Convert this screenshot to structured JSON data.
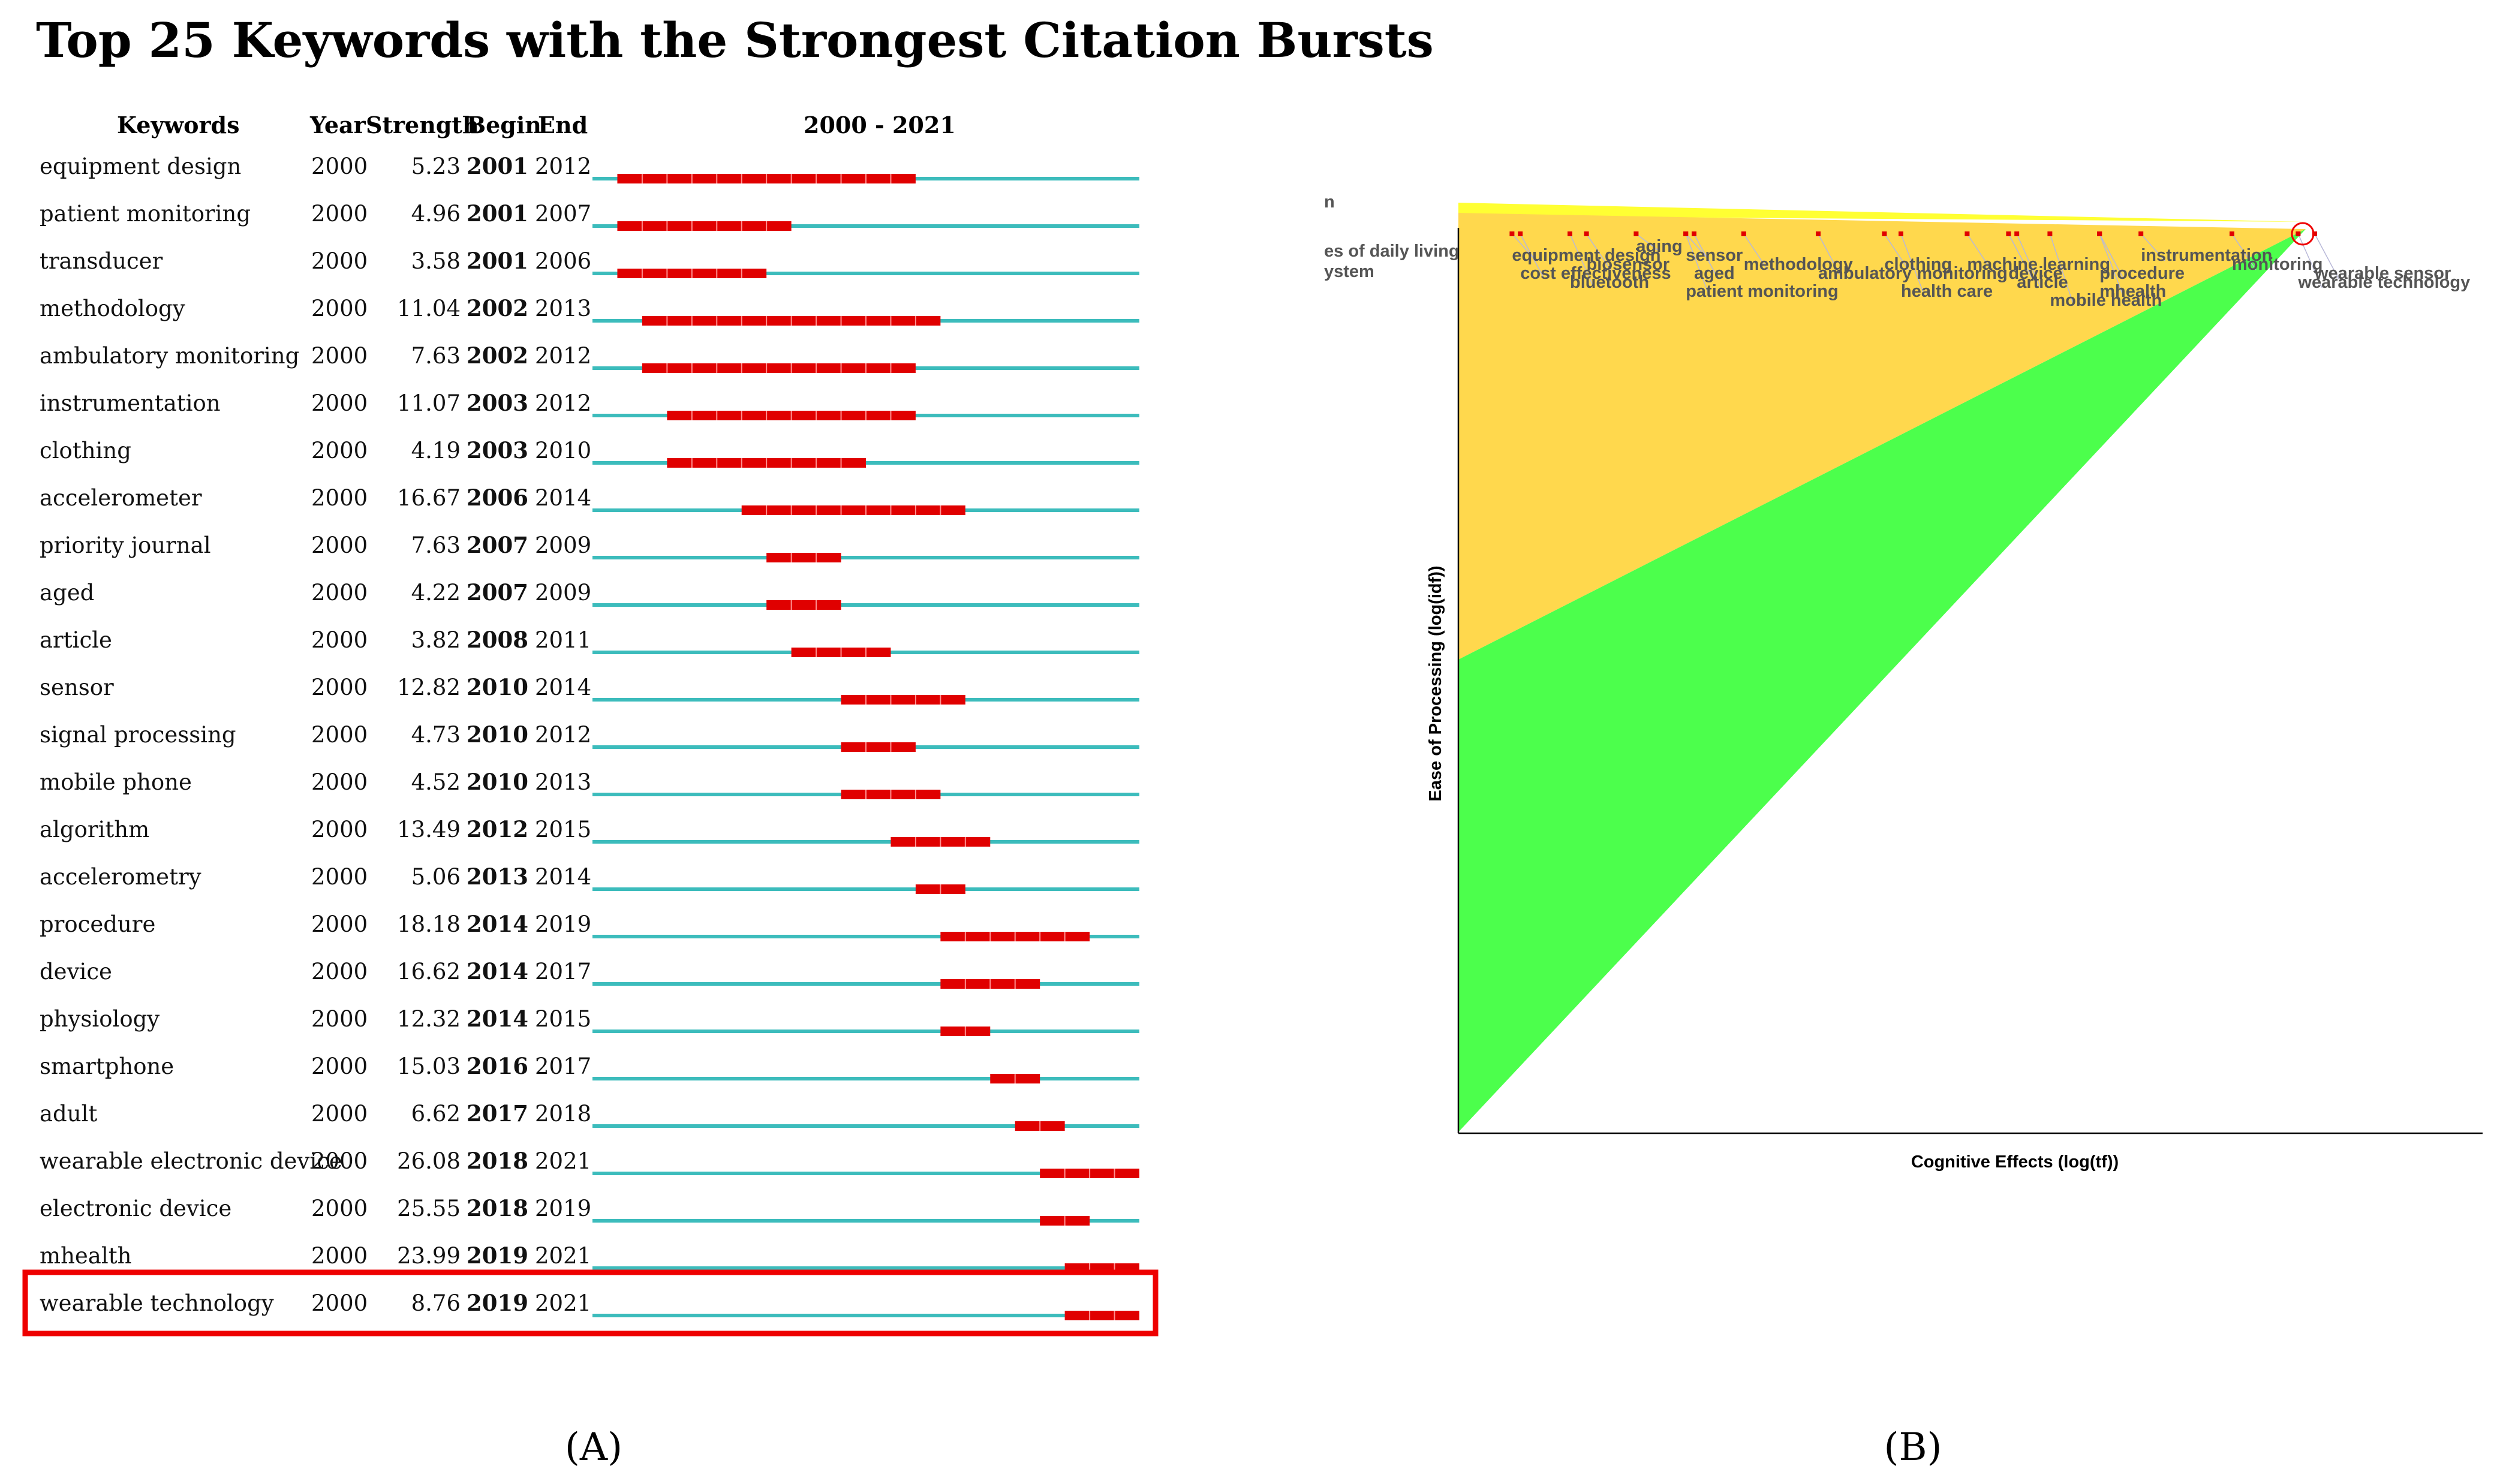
{
  "panel_a": {
    "caption": "(A)",
    "highlight_keyword": "wearable technology"
  },
  "panel_b": {
    "caption": "(B)",
    "edge_labels": [
      "n",
      "es of daily living",
      "ystem"
    ]
  },
  "colors": {
    "burst": "#e00000",
    "baseline": "#3cbcbc",
    "highlight": "#ee0000",
    "upper_triangle": "#ffd84d",
    "top_band": "#ffff33",
    "lower_triangle": "#4cff4c",
    "label": "#555555",
    "link": "#b8b8d8"
  },
  "chart_data": [
    {
      "type": "timeline",
      "title": "Top 25 Keywords with the Strongest Citation Bursts",
      "columns": [
        "Keywords",
        "Year",
        "Strength",
        "Begin",
        "End",
        "2000 - 2021"
      ],
      "range": [
        2000,
        2021
      ],
      "rows": [
        {
          "keyword": "equipment design",
          "year": 2000,
          "strength": "5.23",
          "begin": 2001,
          "end": 2012
        },
        {
          "keyword": "patient monitoring",
          "year": 2000,
          "strength": "4.96",
          "begin": 2001,
          "end": 2007
        },
        {
          "keyword": "transducer",
          "year": 2000,
          "strength": "3.58",
          "begin": 2001,
          "end": 2006
        },
        {
          "keyword": "methodology",
          "year": 2000,
          "strength": "11.04",
          "begin": 2002,
          "end": 2013
        },
        {
          "keyword": "ambulatory monitoring",
          "year": 2000,
          "strength": "7.63",
          "begin": 2002,
          "end": 2012
        },
        {
          "keyword": "instrumentation",
          "year": 2000,
          "strength": "11.07",
          "begin": 2003,
          "end": 2012
        },
        {
          "keyword": "clothing",
          "year": 2000,
          "strength": "4.19",
          "begin": 2003,
          "end": 2010
        },
        {
          "keyword": "accelerometer",
          "year": 2000,
          "strength": "16.67",
          "begin": 2006,
          "end": 2014
        },
        {
          "keyword": "priority journal",
          "year": 2000,
          "strength": "7.63",
          "begin": 2007,
          "end": 2009
        },
        {
          "keyword": "aged",
          "year": 2000,
          "strength": "4.22",
          "begin": 2007,
          "end": 2009
        },
        {
          "keyword": "article",
          "year": 2000,
          "strength": "3.82",
          "begin": 2008,
          "end": 2011
        },
        {
          "keyword": "sensor",
          "year": 2000,
          "strength": "12.82",
          "begin": 2010,
          "end": 2014
        },
        {
          "keyword": "signal processing",
          "year": 2000,
          "strength": "4.73",
          "begin": 2010,
          "end": 2012
        },
        {
          "keyword": "mobile phone",
          "year": 2000,
          "strength": "4.52",
          "begin": 2010,
          "end": 2013
        },
        {
          "keyword": "algorithm",
          "year": 2000,
          "strength": "13.49",
          "begin": 2012,
          "end": 2015
        },
        {
          "keyword": "accelerometry",
          "year": 2000,
          "strength": "5.06",
          "begin": 2013,
          "end": 2014
        },
        {
          "keyword": "procedure",
          "year": 2000,
          "strength": "18.18",
          "begin": 2014,
          "end": 2019
        },
        {
          "keyword": "device",
          "year": 2000,
          "strength": "16.62",
          "begin": 2014,
          "end": 2017
        },
        {
          "keyword": "physiology",
          "year": 2000,
          "strength": "12.32",
          "begin": 2014,
          "end": 2015
        },
        {
          "keyword": "smartphone",
          "year": 2000,
          "strength": "15.03",
          "begin": 2016,
          "end": 2017
        },
        {
          "keyword": "adult",
          "year": 2000,
          "strength": "6.62",
          "begin": 2017,
          "end": 2018
        },
        {
          "keyword": "wearable electronic device",
          "year": 2000,
          "strength": "26.08",
          "begin": 2018,
          "end": 2021
        },
        {
          "keyword": "electronic device",
          "year": 2000,
          "strength": "25.55",
          "begin": 2018,
          "end": 2019
        },
        {
          "keyword": "mhealth",
          "year": 2000,
          "strength": "23.99",
          "begin": 2019,
          "end": 2021
        },
        {
          "keyword": "wearable technology",
          "year": 2000,
          "strength": "8.76",
          "begin": 2019,
          "end": 2021
        }
      ]
    },
    {
      "type": "scatter",
      "title": "",
      "xlabel": "Cognitive Effects (log(tf))",
      "ylabel": "Ease of Processing (log(idf))",
      "xlim": [
        0,
        1
      ],
      "ylim": [
        0,
        1
      ],
      "regions": [
        {
          "name": "upper",
          "color": "#ffd84d"
        },
        {
          "name": "lower",
          "color": "#4cff4c"
        }
      ],
      "points": [
        {
          "label": "equipment design",
          "x": 0.03,
          "y": 0.97
        },
        {
          "label": "cost effectiveness",
          "x": 0.04,
          "y": 0.95
        },
        {
          "label": "bluetooth",
          "x": 0.1,
          "y": 0.94
        },
        {
          "label": "biosensor",
          "x": 0.12,
          "y": 0.96
        },
        {
          "label": "aging",
          "x": 0.18,
          "y": 0.98
        },
        {
          "label": "sensor",
          "x": 0.24,
          "y": 0.97
        },
        {
          "label": "aged",
          "x": 0.25,
          "y": 0.95
        },
        {
          "label": "patient monitoring",
          "x": 0.24,
          "y": 0.93
        },
        {
          "label": "methodology",
          "x": 0.31,
          "y": 0.96
        },
        {
          "label": "ambulatory monitoring",
          "x": 0.4,
          "y": 0.95
        },
        {
          "label": "clothing",
          "x": 0.48,
          "y": 0.96
        },
        {
          "label": "health care",
          "x": 0.5,
          "y": 0.93
        },
        {
          "label": "machine learning",
          "x": 0.58,
          "y": 0.96
        },
        {
          "label": "device",
          "x": 0.63,
          "y": 0.95
        },
        {
          "label": "article",
          "x": 0.64,
          "y": 0.94
        },
        {
          "label": "mobile health",
          "x": 0.68,
          "y": 0.92
        },
        {
          "label": "procedure",
          "x": 0.74,
          "y": 0.95
        },
        {
          "label": "instrumentation",
          "x": 0.79,
          "y": 0.97
        },
        {
          "label": "mhealth",
          "x": 0.74,
          "y": 0.93
        },
        {
          "label": "monitoring",
          "x": 0.9,
          "y": 0.96
        },
        {
          "label": "wearable technology",
          "x": 0.98,
          "y": 0.94
        },
        {
          "label": "wearable sensor",
          "x": 1.0,
          "y": 0.95
        }
      ]
    }
  ]
}
